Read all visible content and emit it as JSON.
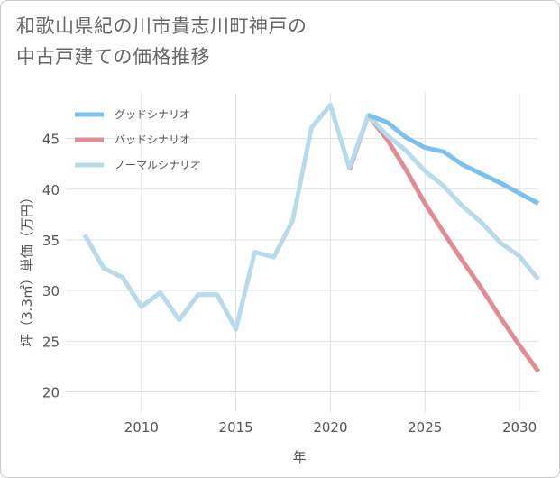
{
  "title": {
    "line1": "和歌山県紀の川市貴志川町神戸の",
    "line2": "中古戸建ての価格推移"
  },
  "colors": {
    "good": "#7cc0ec",
    "bad": "#de8c95",
    "normal": "#b9dbe9",
    "grid": "#d9e3ea",
    "text": "#555555"
  },
  "chart_data": {
    "type": "line",
    "title": "和歌山県紀の川市貴志川町神戸の中古戸建ての価格推移",
    "xlabel": "年",
    "ylabel": "坪（3.3㎡）単価（万円）",
    "xlim": [
      2006,
      2031
    ],
    "ylim": [
      18,
      49.5
    ],
    "x_ticks": [
      2010,
      2015,
      2020,
      2025,
      2030
    ],
    "x_tick_labels": [
      "2010",
      "2015",
      "2020",
      "2025",
      "2030"
    ],
    "y_ticks": [
      20,
      25,
      30,
      35,
      40,
      45
    ],
    "y_tick_labels": [
      "20",
      "25",
      "30",
      "35",
      "40",
      "45"
    ],
    "grid": true,
    "legend_position": "top-left",
    "series": [
      {
        "key": "good",
        "name": "グッドシナリオ",
        "x": [
          2022,
          2023,
          2024,
          2025,
          2026,
          2027,
          2028,
          2029,
          2030,
          2031
        ],
        "y": [
          47.3,
          46.6,
          45.1,
          44.1,
          43.7,
          42.4,
          41.5,
          40.6,
          39.6,
          38.6
        ]
      },
      {
        "key": "bad",
        "name": "バッドシナリオ",
        "x": [
          2021,
          2022,
          2023,
          2024,
          2025,
          2026,
          2027,
          2028,
          2029,
          2030,
          2031
        ],
        "y": [
          41.9,
          47.3,
          44.9,
          41.9,
          38.6,
          35.7,
          32.9,
          30.2,
          27.3,
          24.6,
          22.0
        ]
      },
      {
        "key": "normal",
        "name": "ノーマルシナリオ",
        "x": [
          2007,
          2008,
          2009,
          2010,
          2011,
          2012,
          2013,
          2014,
          2015,
          2016,
          2017,
          2018,
          2019,
          2020,
          2021,
          2022,
          2023,
          2024,
          2025,
          2026,
          2027,
          2028,
          2029,
          2030,
          2031
        ],
        "y": [
          35.5,
          32.2,
          31.3,
          28.4,
          29.8,
          27.1,
          29.6,
          29.6,
          26.2,
          33.8,
          33.3,
          36.9,
          46.1,
          48.3,
          42.1,
          47.3,
          45.3,
          43.8,
          41.8,
          40.3,
          38.3,
          36.7,
          34.7,
          33.4,
          31.1
        ]
      }
    ]
  }
}
